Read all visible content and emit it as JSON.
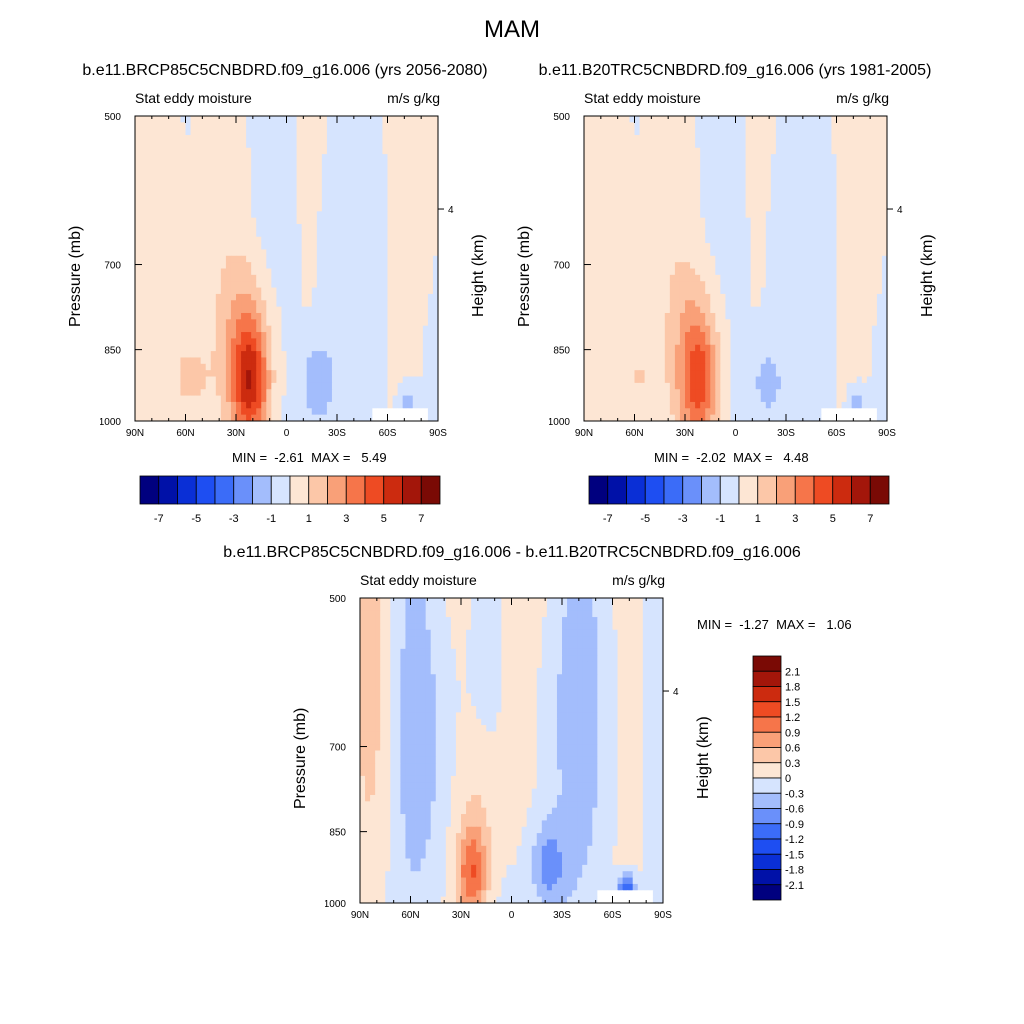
{
  "title": "MAM",
  "palette": [
    "#00007f",
    "#0011a8",
    "#0a2fd6",
    "#1e4ef2",
    "#3b6cf8",
    "#6a90fa",
    "#a3bdfc",
    "#d6e4fe",
    "#fde6d4",
    "#fcc7a8",
    "#f9a078",
    "#f6754a",
    "#ee4b23",
    "#cc2b0f",
    "#a3160a",
    "#7a0a05"
  ],
  "chart_data": [
    {
      "type": "heatmap",
      "title": "b.e11.BRCP85C5CNBDRD.f09_g16.006 (yrs 2056-2080)",
      "left_label": "Stat eddy moisture",
      "right_label": "m/s g/kg",
      "ylabel": "Pressure (mb)",
      "ylabel_right": "Height (km)",
      "xticks": [
        "90N",
        "60N",
        "30N",
        "0",
        "30S",
        "60S",
        "90S"
      ],
      "yticks": [
        "500",
        "700",
        "850",
        "1000"
      ],
      "right_ticks": [
        "4"
      ],
      "min": "-2.61",
      "max": "5.49",
      "minmax_text": "MIN =  -2.61  MAX =   5.49",
      "colorbar_labels": [
        "-7",
        "-5",
        "-3",
        "-1",
        "1",
        "3",
        "5",
        "7"
      ],
      "peak": 5.49,
      "trough": -2.61
    },
    {
      "type": "heatmap",
      "title": "b.e11.B20TRC5CNBDRD.f09_g16.006 (yrs 1981-2005)",
      "left_label": "Stat eddy moisture",
      "right_label": "m/s g/kg",
      "ylabel": "Pressure (mb)",
      "ylabel_right": "Height (km)",
      "xticks": [
        "90N",
        "60N",
        "30N",
        "0",
        "30S",
        "60S",
        "90S"
      ],
      "yticks": [
        "500",
        "700",
        "850",
        "1000"
      ],
      "right_ticks": [
        "4"
      ],
      "min": "-2.02",
      "max": "4.48",
      "minmax_text": "MIN =  -2.02  MAX =   4.48",
      "colorbar_labels": [
        "-7",
        "-5",
        "-3",
        "-1",
        "1",
        "3",
        "5",
        "7"
      ],
      "peak": 4.48,
      "trough": -2.02
    },
    {
      "type": "heatmap",
      "title": "b.e11.BRCP85C5CNBDRD.f09_g16.006 - b.e11.B20TRC5CNBDRD.f09_g16.006",
      "left_label": "Stat eddy moisture",
      "right_label": "m/s g/kg",
      "ylabel": "Pressure (mb)",
      "ylabel_right": "Height (km)",
      "xticks": [
        "90N",
        "60N",
        "30N",
        "0",
        "30S",
        "60S",
        "90S"
      ],
      "yticks": [
        "500",
        "700",
        "850",
        "1000"
      ],
      "right_ticks": [
        "4"
      ],
      "min": "-1.27",
      "max": "1.06",
      "minmax_text": "MIN =  -1.27  MAX =   1.06",
      "colorbar_labels": [
        "2.1",
        "1.8",
        "1.5",
        "1.2",
        "0.9",
        "0.6",
        "0.3",
        "0",
        "-0.3",
        "-0.6",
        "-0.9",
        "-1.2",
        "-1.5",
        "-1.8",
        "-2.1"
      ],
      "peak": 1.06,
      "trough": -1.27
    }
  ]
}
